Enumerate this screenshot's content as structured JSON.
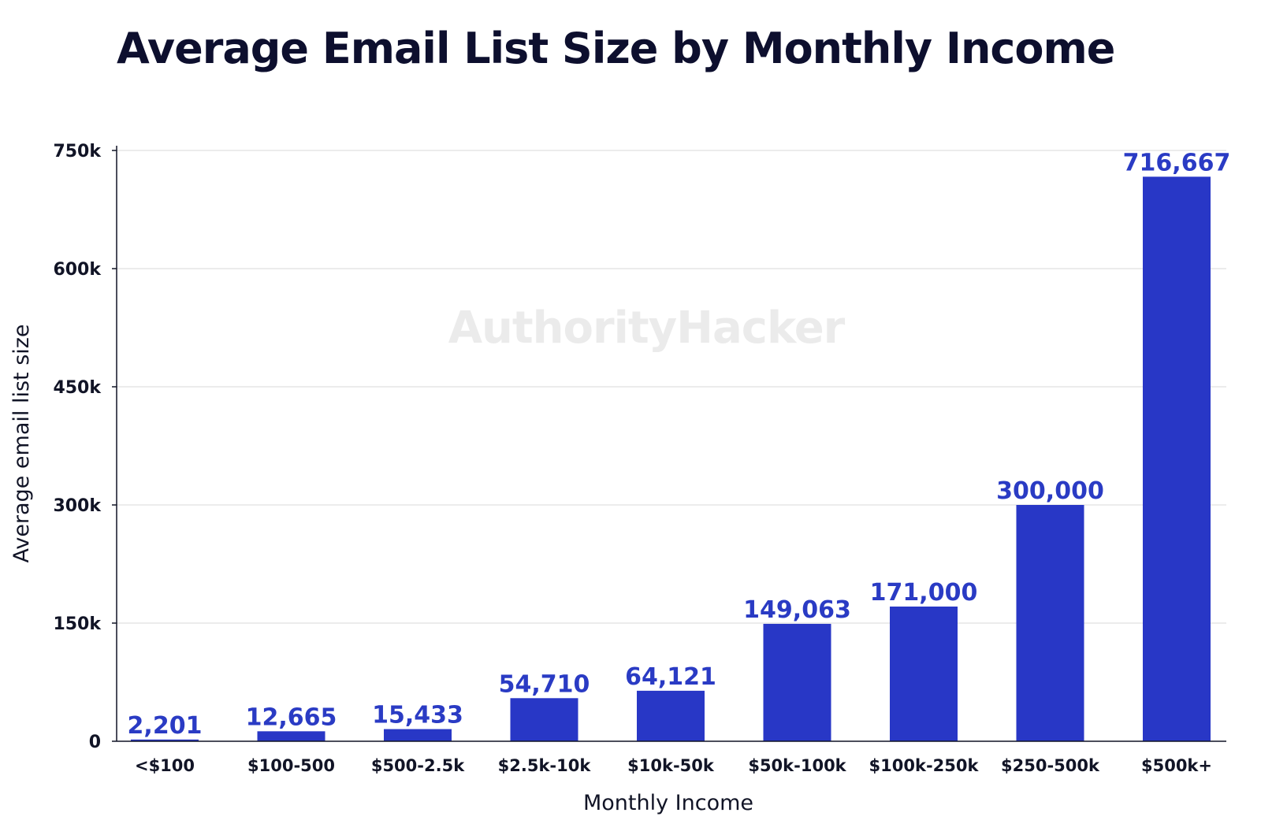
{
  "chart_data": {
    "type": "bar",
    "title": "Average Email List Size by Monthly Income",
    "xlabel": "Monthly Income",
    "ylabel": "Average email list size",
    "categories": [
      "<$100",
      "$100-500",
      "$500-2.5k",
      "$2.5k-10k",
      "$10k-50k",
      "$50k-100k",
      "$100k-250k",
      "$250-500k",
      "$500k+"
    ],
    "values": [
      2201,
      12665,
      15433,
      54710,
      64121,
      149063,
      171000,
      300000,
      716667
    ],
    "value_labels": [
      "2,201",
      "12,665",
      "15,433",
      "54,710",
      "64,121",
      "149,063",
      "171,000",
      "300,000",
      "716,667"
    ],
    "ylim": [
      0,
      750000
    ],
    "yticks": [
      0,
      150000,
      300000,
      450000,
      600000,
      750000
    ],
    "ytick_labels": [
      "0",
      "150k",
      "300k",
      "450k",
      "600k",
      "750k"
    ],
    "grid": "horizontal",
    "legend": "none",
    "watermark": "AuthorityHacker"
  },
  "colors": {
    "bar": "#2837c6",
    "data_label": "#2a3bc4",
    "grid": "#d9d9d9",
    "axis": "#111426",
    "title": "#0d0f2e",
    "watermark": "#ebebeb"
  }
}
